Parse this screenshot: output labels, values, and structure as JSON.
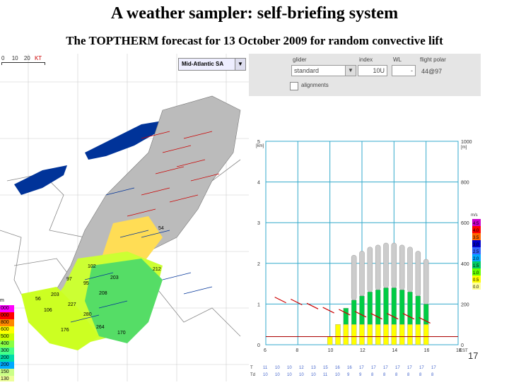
{
  "slide": {
    "title": "A weather sampler: self-briefing system",
    "subtitle": "The TOPTHERM forecast for 13 October 2009 for random convective lift",
    "page_number": "17"
  },
  "map": {
    "scale_labels": [
      "0",
      "10",
      "20",
      "KT"
    ],
    "region_select": "Mid-Atlantic SA",
    "dropdown_arrow": "▼",
    "cell_labels": [
      "54",
      "102",
      "97",
      "95",
      "208",
      "203",
      "212",
      "203",
      "56",
      "227",
      "280",
      "264",
      "176",
      "170",
      "106"
    ],
    "legend": {
      "unit": "m",
      "colors": [
        "#ff00ff",
        "#ff0000",
        "#ff8800",
        "#ffff00",
        "#ccff00",
        "#88ff44",
        "#44ff88",
        "#00ddaa",
        "#00aaff",
        "#ccff88",
        "#eeff99",
        "#ffff66",
        "#ffffaa",
        "#ffffcc"
      ],
      "labels": [
        "000",
        "000",
        "800",
        "600",
        "500",
        "400",
        "300",
        "200",
        "200",
        "150",
        "130",
        "100",
        "50",
        ""
      ]
    }
  },
  "glider_panel": {
    "glider_label": "glider",
    "glider_value": "standard",
    "index_label": "index",
    "index_value": "10U",
    "wl_label": "WL",
    "wl_value": "-",
    "polar_label": "flight polar",
    "polar_value": "44@97",
    "alignments_label": "alignments"
  },
  "chart_data": {
    "type": "bar",
    "title": "",
    "xlabel": "",
    "ylabel": "[km]",
    "y2label": "[m]",
    "x_ticks": [
      "6",
      "8",
      "10",
      "12",
      "14",
      "16",
      "18"
    ],
    "y_ticks": [
      "0",
      "1",
      "2",
      "3",
      "4",
      "5"
    ],
    "y2_ticks": [
      "0",
      "200",
      "400",
      "600",
      "800",
      "1000"
    ],
    "x_suffix": "EST",
    "x": [
      6,
      7,
      8,
      9,
      10,
      10.5,
      11,
      11.5,
      12,
      12.5,
      13,
      13.5,
      14,
      14.5,
      15,
      15.5,
      16,
      16.5,
      17
    ],
    "values": [
      0,
      0,
      0,
      0,
      0.2,
      0.5,
      0.9,
      1.1,
      1.2,
      1.3,
      1.35,
      1.4,
      1.4,
      1.35,
      1.3,
      1.2,
      1.0,
      0,
      0
    ],
    "ylim": [
      0,
      5
    ],
    "xlim": [
      6,
      18
    ],
    "right_legend": {
      "unit": "m/s",
      "labels": [
        "4.5",
        "4.0",
        "3.5",
        "3.0",
        "2.5",
        "2.0",
        "1.5",
        "1.0",
        "0.5",
        "0.0"
      ],
      "colors": [
        "#cc00cc",
        "#ff0000",
        "#ff6600",
        "#0000cc",
        "#3366ff",
        "#00aaff",
        "#00cc66",
        "#66ff00",
        "#ffff00",
        "#ffff99"
      ]
    },
    "row_T_label": "T",
    "row_Td_label": "Td",
    "row_T_values": [
      "11",
      "10",
      "10",
      "12",
      "13",
      "15",
      "16",
      "16",
      "17",
      "17",
      "17",
      "17",
      "17",
      "17",
      "17"
    ],
    "row_Td_values": [
      "10",
      "10",
      "10",
      "10",
      "10",
      "11",
      "10",
      "9",
      "9",
      "8",
      "8",
      "8",
      "8",
      "8",
      "8"
    ],
    "grid": true,
    "colors": {
      "grid": "#33aacc",
      "bar_low": "#ffff00",
      "bar_mid": "#00cc44",
      "cloud": "#cccccc",
      "wind": "#cc0000"
    }
  }
}
